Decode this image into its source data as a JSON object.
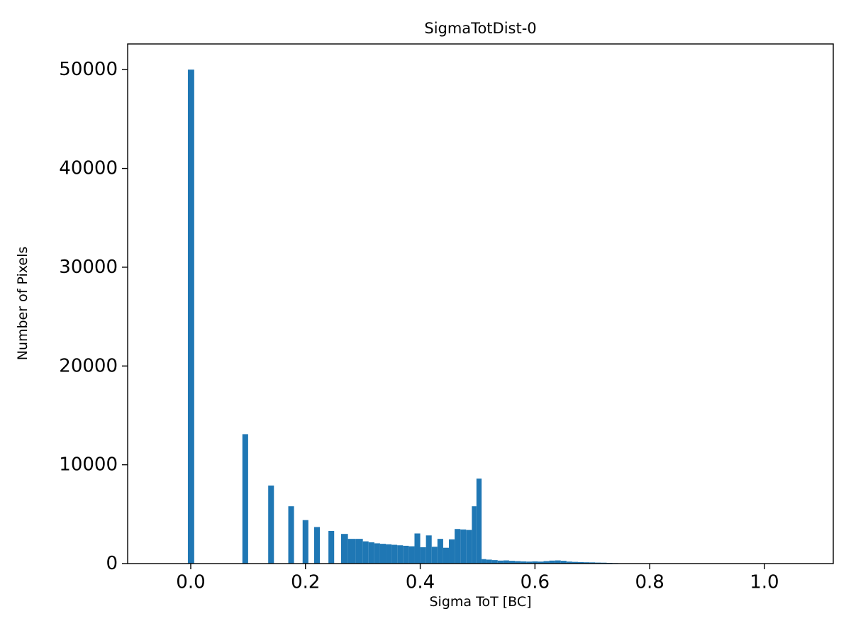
{
  "chart_data": {
    "type": "bar",
    "title": "SigmaTotDist-0",
    "xlabel": "Sigma ToT [BC]",
    "ylabel": "Number of Pixels",
    "xlim": [
      -0.11,
      1.12
    ],
    "ylim": [
      0,
      52600
    ],
    "x_ticks": [
      0.0,
      0.2,
      0.4,
      0.6,
      0.8,
      1.0
    ],
    "y_ticks": [
      0,
      10000,
      20000,
      30000,
      40000,
      50000
    ],
    "grid": false,
    "legend": null,
    "bar_color": "#1f77b4",
    "bars_format": "x_left, width, height",
    "bars": [
      [
        -0.005,
        0.011,
        50000
      ],
      [
        0.09,
        0.01,
        13100
      ],
      [
        0.135,
        0.01,
        7900
      ],
      [
        0.17,
        0.01,
        5800
      ],
      [
        0.195,
        0.01,
        4400
      ],
      [
        0.215,
        0.01,
        3700
      ],
      [
        0.24,
        0.01,
        3300
      ],
      [
        0.262,
        0.012,
        3000
      ],
      [
        0.274,
        0.013,
        2500
      ],
      [
        0.287,
        0.013,
        2500
      ],
      [
        0.3,
        0.01,
        2250
      ],
      [
        0.31,
        0.01,
        2150
      ],
      [
        0.32,
        0.01,
        2050
      ],
      [
        0.33,
        0.01,
        2000
      ],
      [
        0.34,
        0.01,
        1950
      ],
      [
        0.35,
        0.01,
        1900
      ],
      [
        0.36,
        0.01,
        1850
      ],
      [
        0.37,
        0.01,
        1800
      ],
      [
        0.38,
        0.01,
        1750
      ],
      [
        0.39,
        0.01,
        3050
      ],
      [
        0.4,
        0.01,
        1650
      ],
      [
        0.41,
        0.01,
        2850
      ],
      [
        0.42,
        0.01,
        1700
      ],
      [
        0.43,
        0.01,
        2500
      ],
      [
        0.44,
        0.01,
        1600
      ],
      [
        0.45,
        0.01,
        2450
      ],
      [
        0.46,
        0.01,
        3500
      ],
      [
        0.47,
        0.01,
        3450
      ],
      [
        0.48,
        0.01,
        3400
      ],
      [
        0.49,
        0.008,
        5800
      ],
      [
        0.498,
        0.009,
        8600
      ],
      [
        0.507,
        0.008,
        450
      ],
      [
        0.515,
        0.01,
        400
      ],
      [
        0.525,
        0.01,
        350
      ],
      [
        0.535,
        0.01,
        300
      ],
      [
        0.545,
        0.01,
        320
      ],
      [
        0.555,
        0.01,
        280
      ],
      [
        0.565,
        0.01,
        250
      ],
      [
        0.575,
        0.01,
        220
      ],
      [
        0.585,
        0.01,
        200
      ],
      [
        0.595,
        0.01,
        220
      ],
      [
        0.605,
        0.01,
        200
      ],
      [
        0.615,
        0.01,
        250
      ],
      [
        0.625,
        0.01,
        300
      ],
      [
        0.635,
        0.01,
        320
      ],
      [
        0.645,
        0.01,
        280
      ],
      [
        0.655,
        0.01,
        200
      ],
      [
        0.665,
        0.01,
        170
      ],
      [
        0.675,
        0.01,
        150
      ],
      [
        0.685,
        0.01,
        130
      ],
      [
        0.695,
        0.01,
        120
      ],
      [
        0.705,
        0.01,
        100
      ],
      [
        0.715,
        0.01,
        90
      ],
      [
        0.725,
        0.01,
        70
      ],
      [
        0.735,
        0.01,
        50
      ]
    ]
  }
}
